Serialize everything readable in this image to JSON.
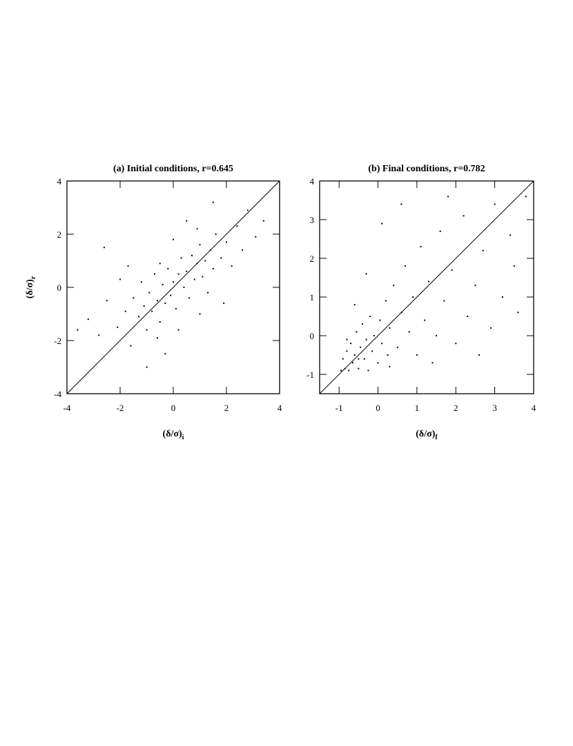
{
  "chart_data": [
    {
      "type": "scatter",
      "title": "(a) Initial conditions, r=0.645",
      "xlabel": "(δ/σ)",
      "xlabel_sub": "i",
      "ylabel": "(δ/σ)",
      "ylabel_sub": "r",
      "xlim": [
        -4,
        4
      ],
      "ylim": [
        -4,
        4
      ],
      "xticks": [
        -4,
        -2,
        0,
        2,
        4
      ],
      "yticks": [
        -4,
        -2,
        0,
        2,
        4
      ],
      "identity_line": true,
      "color": "#000000",
      "x": [
        -3.2,
        -2.8,
        -2.5,
        -2.1,
        -2.0,
        -1.8,
        -1.6,
        -1.5,
        -1.3,
        -1.2,
        -1.1,
        -1.0,
        -0.9,
        -0.8,
        -0.7,
        -0.6,
        -0.5,
        -0.4,
        -0.3,
        -0.2,
        -0.1,
        0.0,
        0.1,
        0.2,
        0.3,
        0.4,
        0.5,
        0.6,
        0.7,
        0.8,
        0.9,
        1.0,
        1.1,
        1.2,
        1.3,
        1.4,
        1.5,
        1.6,
        1.8,
        2.0,
        2.2,
        2.4,
        2.6,
        2.8,
        3.1,
        3.4,
        -0.5,
        0.2,
        -1.7,
        1.0,
        -2.6,
        0.5,
        -0.3,
        1.9,
        0.0,
        -1.0,
        0.9,
        -0.6,
        1.5,
        -3.6
      ],
      "y": [
        -1.2,
        -1.8,
        -0.5,
        -1.5,
        0.3,
        -0.9,
        -2.2,
        -0.4,
        -1.1,
        0.2,
        -0.7,
        -1.6,
        -0.2,
        -0.9,
        0.5,
        -0.5,
        -1.3,
        0.1,
        -0.6,
        0.7,
        -0.3,
        0.2,
        -0.8,
        0.5,
        1.1,
        0.0,
        0.6,
        -0.4,
        1.2,
        0.3,
        0.9,
        1.6,
        0.4,
        1.0,
        -0.2,
        1.4,
        0.7,
        2.0,
        1.1,
        1.7,
        0.8,
        2.3,
        1.4,
        2.9,
        1.9,
        2.5,
        0.9,
        -1.6,
        0.8,
        -1.0,
        1.5,
        2.5,
        -2.5,
        -0.6,
        1.8,
        -3.0,
        2.2,
        -1.9,
        3.2,
        -1.6
      ]
    },
    {
      "type": "scatter",
      "title": "(b) Final conditions, r=0.782",
      "xlabel": "(δ/σ)",
      "xlabel_sub": "f",
      "xlim": [
        -1.5,
        4
      ],
      "ylim": [
        -1.5,
        4
      ],
      "xticks": [
        -1,
        0,
        1,
        2,
        3,
        4
      ],
      "yticks": [
        -1,
        0,
        1,
        2,
        3,
        4
      ],
      "identity_line": true,
      "color": "#000000",
      "x": [
        -0.95,
        -0.9,
        -0.85,
        -0.8,
        -0.75,
        -0.7,
        -0.65,
        -0.6,
        -0.55,
        -0.5,
        -0.45,
        -0.4,
        -0.35,
        -0.3,
        -0.25,
        -0.2,
        -0.15,
        -0.1,
        0.0,
        0.05,
        0.1,
        0.2,
        0.25,
        0.3,
        0.4,
        0.5,
        0.6,
        0.7,
        0.8,
        0.9,
        1.0,
        1.1,
        1.2,
        1.3,
        1.5,
        1.6,
        1.7,
        1.9,
        2.0,
        2.2,
        2.3,
        2.5,
        2.7,
        2.9,
        3.0,
        3.2,
        3.4,
        3.6,
        3.8,
        0.1,
        -0.3,
        0.6,
        1.4,
        -0.6,
        2.6,
        3.5,
        1.8,
        0.3,
        -0.8,
        -0.5
      ],
      "y": [
        -0.9,
        -0.6,
        -0.85,
        -0.4,
        -0.9,
        -0.2,
        -0.7,
        -0.5,
        0.1,
        -0.85,
        -0.3,
        0.3,
        -0.6,
        -0.1,
        -0.9,
        0.5,
        -0.4,
        0.0,
        -0.7,
        0.4,
        -0.2,
        0.9,
        -0.5,
        0.2,
        1.3,
        -0.3,
        0.6,
        1.8,
        0.1,
        1.0,
        -0.5,
        2.3,
        0.4,
        1.4,
        0.0,
        2.7,
        0.9,
        1.7,
        -0.2,
        3.1,
        0.5,
        1.3,
        2.2,
        0.2,
        3.4,
        1.0,
        2.6,
        0.6,
        3.6,
        2.9,
        1.6,
        3.4,
        -0.7,
        0.8,
        -0.5,
        1.8,
        3.6,
        -0.8,
        -0.1,
        -0.6
      ]
    }
  ]
}
